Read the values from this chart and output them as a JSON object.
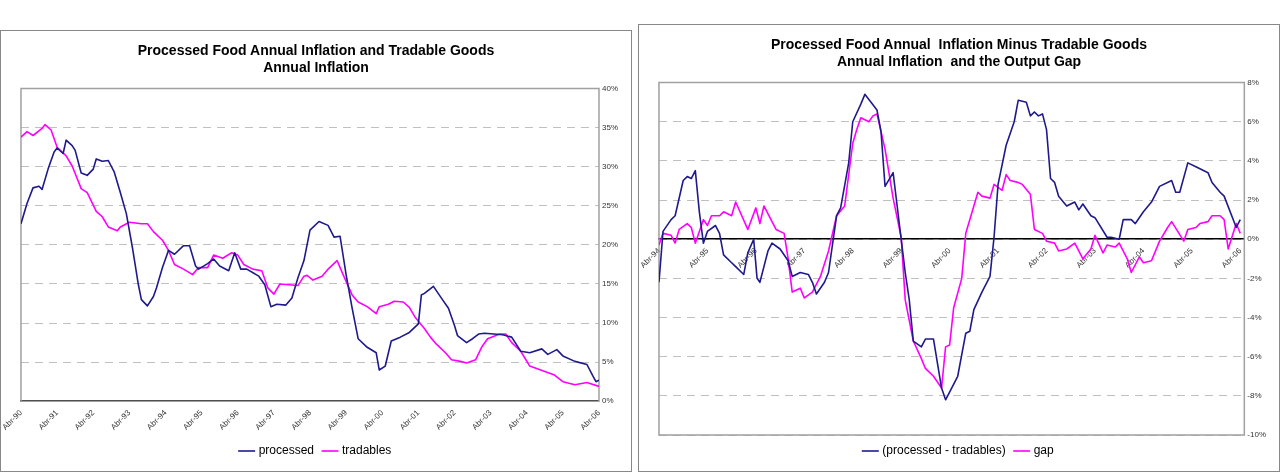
{
  "chart_data": [
    {
      "type": "line",
      "title": "Processed Food Annual Inflation and Tradable Goods Annual Inflation",
      "xlim": [
        "1990-04",
        "2006-04"
      ],
      "xticks": [
        {
          "value": "1990-04",
          "label": "Abr-90"
        },
        {
          "value": "1991-04",
          "label": "Abr-91"
        },
        {
          "value": "1992-04",
          "label": "Abr-92"
        },
        {
          "value": "1993-04",
          "label": "Abr-93"
        },
        {
          "value": "1994-04",
          "label": "Abr-94"
        },
        {
          "value": "1995-04",
          "label": "Abr-95"
        },
        {
          "value": "1996-04",
          "label": "Abr-96"
        },
        {
          "value": "1997-04",
          "label": "Abr-97"
        },
        {
          "value": "1998-04",
          "label": "Abr-98"
        },
        {
          "value": "1999-04",
          "label": "Abr-99"
        },
        {
          "value": "2000-04",
          "label": "Abr-00"
        },
        {
          "value": "2001-04",
          "label": "Abr-01"
        },
        {
          "value": "2002-04",
          "label": "Abr-02"
        },
        {
          "value": "2003-04",
          "label": "Abr-03"
        },
        {
          "value": "2004-04",
          "label": "Abr-04"
        },
        {
          "value": "2005-04",
          "label": "Abr-05"
        },
        {
          "value": "2006-04",
          "label": "Abr-06"
        }
      ],
      "ylim": [
        0,
        40
      ],
      "yticks": [
        {
          "value": 0,
          "label": "0%"
        },
        {
          "value": 5,
          "label": "5%"
        },
        {
          "value": 10,
          "label": "10%"
        },
        {
          "value": 15,
          "label": "15%"
        },
        {
          "value": 20,
          "label": "20%"
        },
        {
          "value": 25,
          "label": "25%"
        },
        {
          "value": 30,
          "label": "30%"
        },
        {
          "value": 35,
          "label": "35%"
        },
        {
          "value": 40,
          "label": "40%"
        }
      ],
      "grid": "y",
      "legend": "bottom",
      "marker": "none",
      "line_style": "solid",
      "series": [
        {
          "name": "processed",
          "color": "#1f1a8c",
          "x": [
            "1990-04",
            "1990-06",
            "1990-08",
            "1990-10",
            "1990-11",
            "1991-01",
            "1991-03",
            "1991-04",
            "1991-06",
            "1991-07",
            "1991-09",
            "1991-10",
            "1991-12",
            "1992-02",
            "1992-04",
            "1992-05",
            "1992-07",
            "1992-09",
            "1992-11",
            "1993-01",
            "1993-03",
            "1993-05",
            "1993-07",
            "1993-08",
            "1993-10",
            "1993-12",
            "1994-01",
            "1994-03",
            "1994-05",
            "1994-07",
            "1994-10",
            "1994-12",
            "1995-02",
            "1995-03",
            "1995-06",
            "1995-08",
            "1995-10",
            "1996-01",
            "1996-03",
            "1996-05",
            "1996-07",
            "1996-11",
            "1997-01",
            "1997-03",
            "1997-05",
            "1997-08",
            "1997-10",
            "1997-12",
            "1998-02",
            "1998-04",
            "1998-07",
            "1998-10",
            "1998-12",
            "1999-02",
            "1999-04",
            "1999-06",
            "1999-08",
            "1999-11",
            "2000-02",
            "2000-03",
            "2000-05",
            "2000-07",
            "2000-10",
            "2001-01",
            "2001-04",
            "2001-05",
            "2001-06",
            "2001-09",
            "2001-12",
            "2002-02",
            "2002-04",
            "2002-05",
            "2002-08",
            "2002-10",
            "2002-12",
            "2003-02",
            "2003-05",
            "2003-08",
            "2003-11",
            "2004-02",
            "2004-05",
            "2004-09",
            "2004-11",
            "2005-02",
            "2005-04",
            "2005-08",
            "2005-12",
            "2006-02",
            "2006-03",
            "2006-04"
          ],
          "values": [
            22.7,
            25.3,
            27.3,
            27.5,
            27.1,
            29.7,
            31.9,
            32.4,
            31.7,
            33.4,
            32.7,
            32.1,
            29.2,
            28.9,
            29.7,
            31,
            30.7,
            30.8,
            29.3,
            26.7,
            24,
            19.7,
            14.9,
            13,
            12.2,
            13.4,
            14.5,
            17.1,
            19.3,
            18.8,
            19.9,
            19.9,
            17.3,
            16.9,
            17.6,
            18.2,
            17.3,
            16.7,
            19,
            16.9,
            16.9,
            16,
            14.9,
            12.1,
            12.4,
            12.3,
            13.2,
            15.8,
            18,
            21.9,
            23,
            22.5,
            21,
            21.1,
            16.2,
            11.9,
            8,
            6.9,
            6.2,
            4,
            4.5,
            7.7,
            8.2,
            8.8,
            9.9,
            13.6,
            13.8,
            14.7,
            13,
            11.9,
            9.7,
            8.4,
            7.5,
            8,
            8.6,
            8.7,
            8.6,
            8.5,
            8.2,
            6.4,
            6.2,
            6.7,
            6,
            6.6,
            5.8,
            5.1,
            4.7,
            3.2,
            2.5,
            2.7
          ]
        },
        {
          "name": "tradables",
          "color": "#ff00ff",
          "x": [
            "1990-04",
            "1990-06",
            "1990-08",
            "1990-11",
            "1990-12",
            "1991-02",
            "1991-04",
            "1991-07",
            "1991-09",
            "1991-12",
            "1992-02",
            "1992-05",
            "1992-07",
            "1992-09",
            "1992-12",
            "1993-01",
            "1993-04",
            "1993-08",
            "1993-10",
            "1993-12",
            "1994-03",
            "1994-05",
            "1994-07",
            "1994-10",
            "1995-01",
            "1995-03",
            "1995-06",
            "1995-08",
            "1995-11",
            "1996-02",
            "1996-04",
            "1996-06",
            "1996-09",
            "1996-12",
            "1997-02",
            "1997-04",
            "1997-06",
            "1997-09",
            "1997-12",
            "1998-02",
            "1998-03",
            "1998-05",
            "1998-08",
            "1998-10",
            "1999-01",
            "1999-03",
            "1999-06",
            "1999-08",
            "1999-11",
            "2000-02",
            "2000-03",
            "2000-06",
            "2000-08",
            "2000-11",
            "2001-01",
            "2001-03",
            "2001-06",
            "2001-08",
            "2001-10",
            "2002-01",
            "2002-03",
            "2002-06",
            "2002-08",
            "2002-11",
            "2003-01",
            "2003-03",
            "2003-07",
            "2003-09",
            "2003-11",
            "2004-02",
            "2004-05",
            "2004-10",
            "2005-01",
            "2005-04",
            "2005-08",
            "2005-12",
            "2006-04"
          ],
          "values": [
            33.8,
            34.5,
            34,
            34.9,
            35.4,
            34.7,
            32.5,
            31.4,
            30.1,
            27.2,
            26.7,
            24.3,
            23.6,
            22.3,
            21.8,
            22.3,
            22.9,
            22.7,
            22.7,
            21.7,
            20.6,
            19.3,
            17.5,
            16.9,
            16.2,
            17.1,
            17.1,
            18.7,
            18.3,
            19,
            18.7,
            17.5,
            16.9,
            16.7,
            14.5,
            13.7,
            15,
            14.9,
            14.8,
            16,
            16.1,
            15.5,
            16,
            16.9,
            18,
            16.2,
            13.6,
            12.7,
            12.1,
            11.2,
            12.1,
            12.4,
            12.8,
            12.7,
            12,
            10.7,
            9.3,
            8.2,
            7.3,
            6.2,
            5.3,
            5.1,
            4.9,
            5.3,
            6.9,
            8,
            8.6,
            8.6,
            7.5,
            6.4,
            4.5,
            3.8,
            3.4,
            2.5,
            2.1,
            2.4,
            1.9
          ]
        }
      ]
    },
    {
      "type": "line",
      "title": "Processed Food Annual  Inflation Minus Tradable Goods Annual Inflation  and the Output Gap",
      "xlim": [
        "1994-04",
        "2006-05"
      ],
      "xticks": [
        {
          "value": "1994-04",
          "label": "Abr-94"
        },
        {
          "value": "1995-04",
          "label": "Abr-95"
        },
        {
          "value": "1996-04",
          "label": "Abr-96"
        },
        {
          "value": "1997-04",
          "label": "Abr-97"
        },
        {
          "value": "1998-04",
          "label": "Abr-98"
        },
        {
          "value": "1999-04",
          "label": "Abr-99"
        },
        {
          "value": "2000-04",
          "label": "Abr-00"
        },
        {
          "value": "2001-04",
          "label": "Abr-01"
        },
        {
          "value": "2002-04",
          "label": "Abr-02"
        },
        {
          "value": "2003-04",
          "label": "Abr-03"
        },
        {
          "value": "2004-04",
          "label": "Abr-04"
        },
        {
          "value": "2005-04",
          "label": "Abr-05"
        },
        {
          "value": "2006-04",
          "label": "Abr-06"
        }
      ],
      "ylim": [
        -10,
        8
      ],
      "yticks": [
        {
          "value": -10,
          "label": "-10%"
        },
        {
          "value": -8,
          "label": "-8%"
        },
        {
          "value": -6,
          "label": "-6%"
        },
        {
          "value": -4,
          "label": "-4%"
        },
        {
          "value": -2,
          "label": "-2%"
        },
        {
          "value": 0,
          "label": "0%"
        },
        {
          "value": 2,
          "label": "2%"
        },
        {
          "value": 4,
          "label": "4%"
        },
        {
          "value": 6,
          "label": "6%"
        },
        {
          "value": 8,
          "label": "8%"
        }
      ],
      "grid": "y",
      "legend": "bottom",
      "marker": "none",
      "line_style": "solid",
      "series": [
        {
          "name": "(processed - tradables)",
          "color": "#1f1a8c",
          "x": [
            "1994-04",
            "1994-05",
            "1994-07",
            "1994-08",
            "1994-10",
            "1994-11",
            "1994-12",
            "1995-01",
            "1995-02",
            "1995-03",
            "1995-04",
            "1995-06",
            "1995-07",
            "1995-08",
            "1995-10",
            "1995-11",
            "1996-01",
            "1996-02",
            "1996-03-15",
            "1996-04-10",
            "1996-05",
            "1996-07",
            "1996-08",
            "1996-10",
            "1996-12",
            "1997-01",
            "1997-03",
            "1997-05",
            "1997-06",
            "1997-07",
            "1997-09",
            "1997-10",
            "1997-12",
            "1998-01",
            "1998-03",
            "1998-04",
            "1998-06",
            "1998-07",
            "1998-10",
            "1998-11",
            "1998-12",
            "1999-02",
            "1999-04",
            "1999-05",
            "1999-06",
            "1999-07",
            "1999-09",
            "1999-10",
            "1999-12",
            "2000-02",
            "2000-03",
            "2000-06",
            "2000-08",
            "2000-09",
            "2000-10",
            "2000-12",
            "2001-02",
            "2001-03",
            "2001-04",
            "2001-06",
            "2001-08",
            "2001-09",
            "2001-11",
            "2001-12",
            "2002-01",
            "2002-02",
            "2002-03",
            "2002-04",
            "2002-05",
            "2002-06",
            "2002-07",
            "2002-09",
            "2002-11",
            "2002-12",
            "2003-01",
            "2003-03",
            "2003-04",
            "2003-07",
            "2003-08",
            "2003-10",
            "2003-11",
            "2004-01",
            "2004-02",
            "2004-04",
            "2004-06",
            "2004-08",
            "2004-11",
            "2004-12",
            "2005-01",
            "2005-03",
            "2005-05",
            "2005-08",
            "2005-09",
            "2005-11",
            "2005-12",
            "2006-03",
            "2006-04"
          ],
          "values": [
            -2.2,
            0.4,
            1,
            1.2,
            3,
            3.2,
            3.1,
            3.5,
            1.4,
            -0.2,
            0.4,
            0.7,
            0.3,
            -0.8,
            -1.2,
            -1.4,
            -1.8,
            -0.7,
            0,
            -2,
            -2.2,
            -0.6,
            -0.2,
            -0.5,
            -1.1,
            -1.9,
            -1.7,
            -1.8,
            -2.2,
            -2.8,
            -2.2,
            -1.7,
            1.2,
            1.6,
            3.9,
            6,
            6.9,
            7.4,
            6.6,
            5.5,
            2.7,
            3.4,
            0,
            -1.7,
            -3.1,
            -5.2,
            -5.5,
            -5.1,
            -5.1,
            -7.6,
            -8.2,
            -7,
            -4.8,
            -4.7,
            -3.6,
            -2.7,
            -1.9,
            0.1,
            2.8,
            4.8,
            6,
            7.1,
            7,
            6.3,
            6.5,
            6.3,
            6.4,
            5.6,
            3.1,
            2.9,
            2.2,
            1.7,
            1.9,
            1.5,
            1.8,
            1.2,
            1.1,
            0.1,
            0.1,
            0,
            1,
            1,
            0.8,
            1.4,
            1.9,
            2.7,
            3,
            2.4,
            2.4,
            3.9,
            3.7,
            3.4,
            2.9,
            2.4,
            2.2,
            0.6,
            1
          ]
        },
        {
          "name": "gap",
          "color": "#ff00ff",
          "x": [
            "1994-04",
            "1994-05",
            "1994-07",
            "1994-08",
            "1994-09",
            "1994-11",
            "1994-12",
            "1995-01",
            "1995-03",
            "1995-04",
            "1995-05",
            "1995-07",
            "1995-08",
            "1995-10",
            "1995-11",
            "1996-02",
            "1996-04",
            "1996-05",
            "1996-06",
            "1996-08",
            "1996-09",
            "1996-11",
            "1996-12",
            "1997-01",
            "1997-03",
            "1997-04",
            "1997-06",
            "1997-08",
            "1997-10",
            "1997-12",
            "1998-02",
            "1998-04",
            "1998-05",
            "1998-06",
            "1998-08",
            "1998-09",
            "1998-10",
            "1998-12",
            "1999-02",
            "1999-04",
            "1999-05",
            "1999-07",
            "1999-09",
            "1999-10",
            "1999-12",
            "2000-02",
            "2000-03",
            "2000-04",
            "2000-05",
            "2000-07",
            "2000-08",
            "2000-10",
            "2000-11",
            "2000-12",
            "2001-02",
            "2001-03",
            "2001-05",
            "2001-06",
            "2001-07",
            "2001-09",
            "2001-10",
            "2001-12",
            "2002-01",
            "2002-03",
            "2002-04",
            "2002-06",
            "2002-07",
            "2002-09",
            "2002-11",
            "2003-01",
            "2003-03",
            "2003-04",
            "2003-06",
            "2003-07",
            "2003-09",
            "2003-10",
            "2003-12",
            "2004-01",
            "2004-03",
            "2004-04",
            "2004-06",
            "2004-08",
            "2004-10",
            "2004-11",
            "2005-02",
            "2005-03",
            "2005-05",
            "2005-06",
            "2005-08",
            "2005-09",
            "2005-11",
            "2005-12",
            "2006-01",
            "2006-03",
            "2006-04"
          ],
          "values": [
            -0.3,
            0.3,
            0.2,
            -0.2,
            0.5,
            0.8,
            0.6,
            -0.2,
            1,
            0.7,
            1.2,
            1.2,
            1.4,
            1.2,
            1.9,
            0.5,
            1.6,
            0.8,
            1.7,
            0.9,
            0.5,
            0.3,
            -1,
            -2.7,
            -2.5,
            -3,
            -2.7,
            -1.9,
            -0.6,
            1.2,
            1.7,
            4.9,
            5.6,
            6.2,
            6,
            6.3,
            6.4,
            4.6,
            2.1,
            0.1,
            -3.1,
            -5.2,
            -6.1,
            -6.6,
            -7,
            -7.6,
            -5.5,
            -5.4,
            -3.5,
            -2,
            0.3,
            1.7,
            2.4,
            2.2,
            2.1,
            2.8,
            2.5,
            3.3,
            3,
            2.9,
            2.8,
            2.3,
            0.5,
            0.3,
            -0.1,
            -0.2,
            -0.6,
            -0.5,
            -0.2,
            -1,
            -0.5,
            0.2,
            -0.7,
            -0.3,
            -0.4,
            -0.2,
            -1,
            -1.7,
            -0.9,
            -1.2,
            -1.1,
            -0.1,
            0.6,
            0.9,
            -0.1,
            0.5,
            0.6,
            0.8,
            0.9,
            1.2,
            1.2,
            1,
            -0.5,
            0.8,
            0.3
          ]
        }
      ]
    }
  ]
}
